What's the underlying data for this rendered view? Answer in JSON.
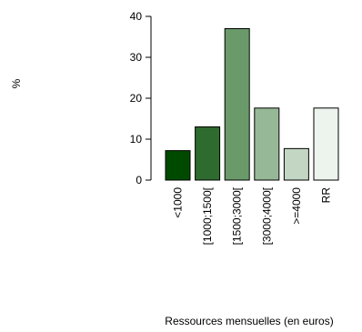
{
  "chart_data": {
    "type": "bar",
    "categories": [
      "<1000",
      "[1000;1500[",
      "[1500;3000[",
      "[3000;4000[",
      ">=4000",
      "RR"
    ],
    "values": [
      7.2,
      13.0,
      37.0,
      17.6,
      7.7,
      17.6
    ],
    "colors": [
      "#004a00",
      "#2e6b2e",
      "#6a9a6a",
      "#97b897",
      "#c3d6c3",
      "#edf3ed"
    ],
    "ylabel": "%",
    "xlabel": "Ressources mensuelles (en euros)",
    "ylim": [
      0,
      40
    ],
    "yticks": [
      0,
      10,
      20,
      30,
      40
    ],
    "grid": false,
    "legend": "none"
  }
}
